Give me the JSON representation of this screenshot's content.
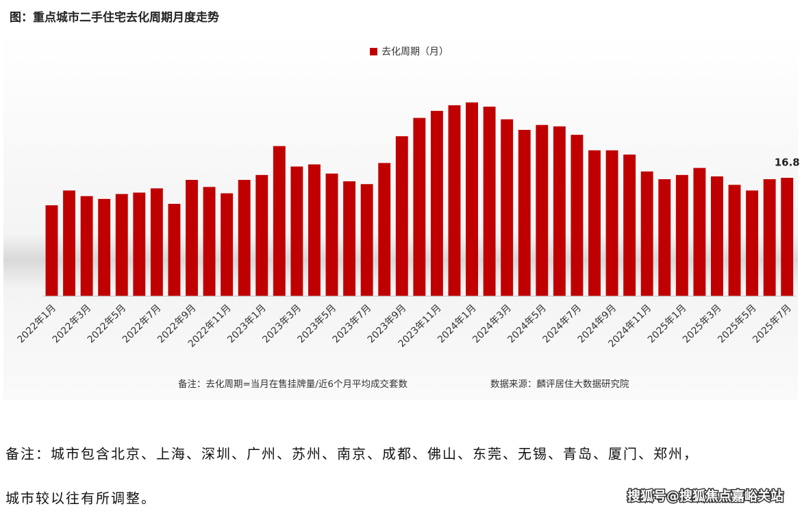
{
  "chart_data": {
    "type": "bar",
    "title": "图：重点城市二手住宅去化周期月度走势",
    "categories": [
      "2022年1月",
      null,
      "2022年3月",
      null,
      "2022年5月",
      null,
      "2022年7月",
      null,
      "2022年9月",
      null,
      "2022年11月",
      null,
      "2023年1月",
      null,
      "2023年3月",
      null,
      "2023年5月",
      null,
      "2023年7月",
      null,
      "2023年9月",
      null,
      "2023年11月",
      null,
      "2024年1月",
      null,
      "2024年3月",
      null,
      "2024年5月",
      null,
      "2024年7月",
      null,
      "2024年9月",
      null,
      "2024年11月",
      null,
      "2025年1月",
      null,
      "2025年3月",
      null,
      "2025年5月",
      null,
      "2025年7月"
    ],
    "series": [
      {
        "name": "去化周期（月）",
        "color": "#c00000",
        "values": [
          12.9,
          15.0,
          14.2,
          13.8,
          14.5,
          14.7,
          15.3,
          13.1,
          16.5,
          15.5,
          14.6,
          16.5,
          17.2,
          21.3,
          18.4,
          18.7,
          17.4,
          16.3,
          15.9,
          18.9,
          22.7,
          25.3,
          26.3,
          27.1,
          27.5,
          26.9,
          25.1,
          23.6,
          24.3,
          24.1,
          22.9,
          20.7,
          20.7,
          20.1,
          17.7,
          16.6,
          17.2,
          18.2,
          17.0,
          15.8,
          15.0,
          16.6,
          16.8
        ]
      }
    ],
    "data_labels": "last",
    "ylim": [
      0,
      30
    ],
    "legend": "top",
    "note": "备注：去化周期=当月在售挂牌量/近6个月平均成交套数",
    "source": "数据来源：麟评居住大数据研究院"
  },
  "caption": {
    "lines": [
      "备注：城市包含北京、上海、深圳、广州、苏州、南京、成都、佛山、东莞、无锡、青岛、厦门、郑州，",
      "城市较以往有所调整。"
    ]
  },
  "watermark": "搜狐号@搜狐焦点嘉峪关站"
}
